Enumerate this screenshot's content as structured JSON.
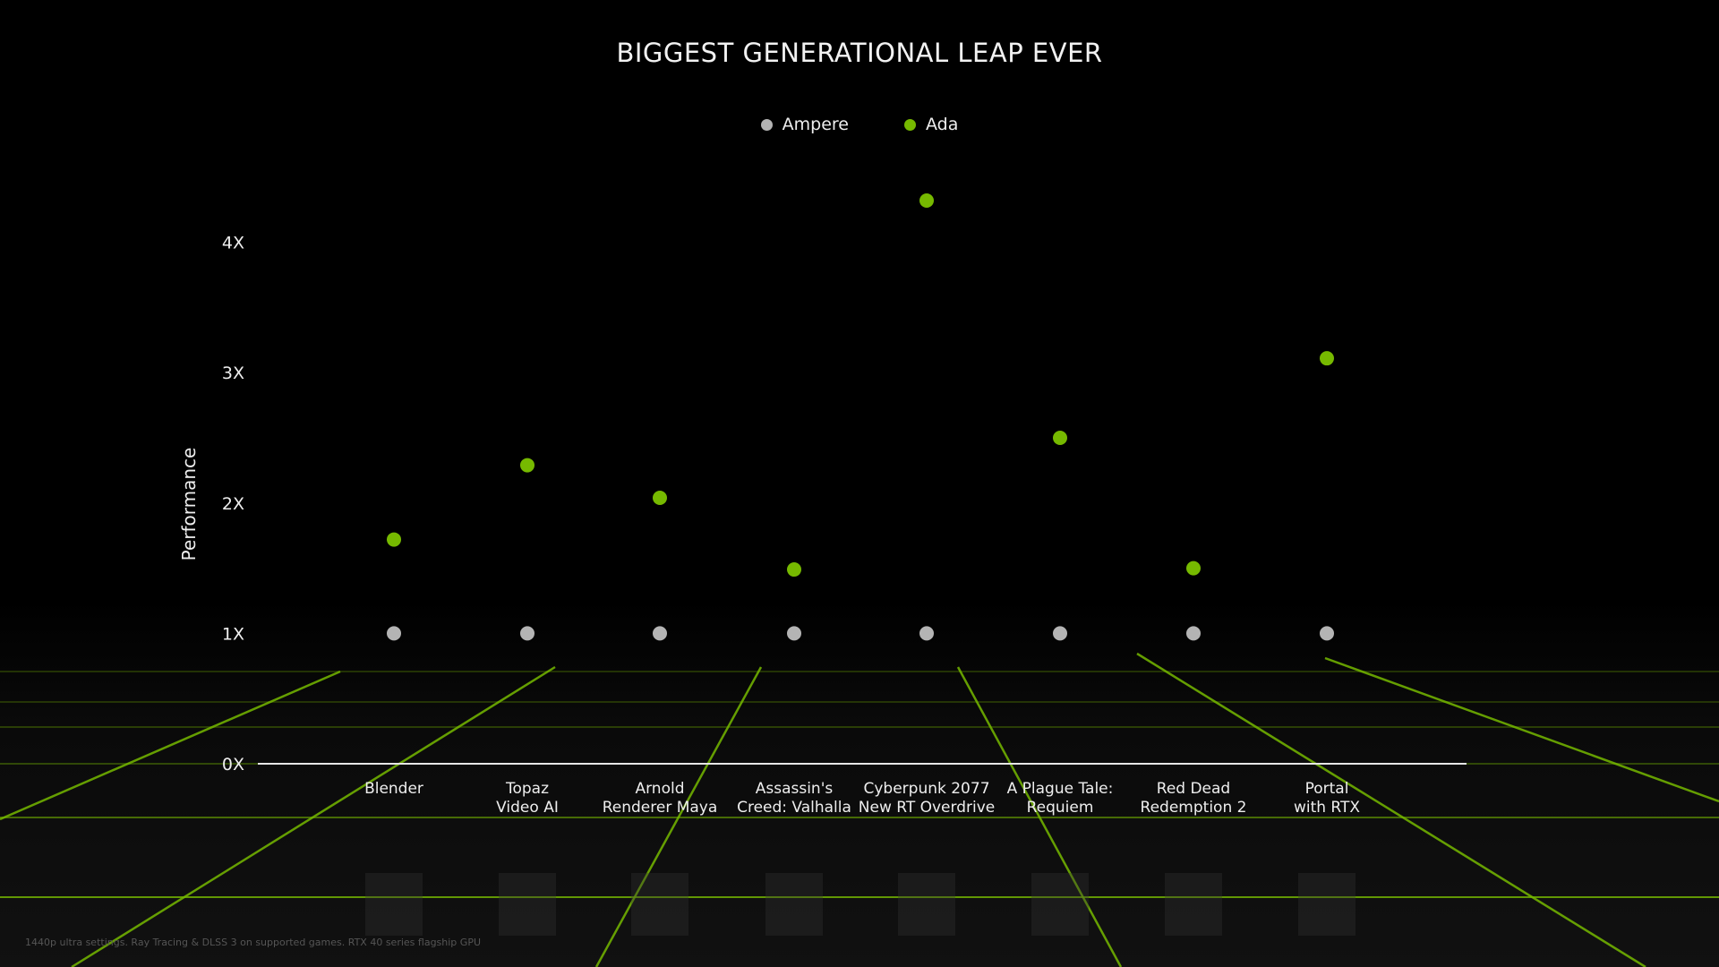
{
  "chart_data": {
    "type": "scatter",
    "title": "BIGGEST GENERATIONAL LEAP EVER",
    "ylabel": "Performance",
    "xlabel": "",
    "ylim": [
      0,
      4.4
    ],
    "yticks": [
      0,
      1,
      2,
      3,
      4
    ],
    "ytick_labels": [
      "0X",
      "1X",
      "2X",
      "3X",
      "4X"
    ],
    "legend_position": "top-center",
    "grid": false,
    "categories": [
      [
        "Blender"
      ],
      [
        "Topaz",
        "Video AI"
      ],
      [
        "Arnold",
        "Renderer Maya"
      ],
      [
        "Assassin's",
        "Creed: Valhalla"
      ],
      [
        "Cyberpunk 2077",
        "New RT Overdrive"
      ],
      [
        "A Plague Tale:",
        "Requiem"
      ],
      [
        "Red Dead",
        "Redemption 2"
      ],
      [
        "Portal",
        "with RTX"
      ]
    ],
    "series": [
      {
        "name": "Ampere",
        "color": "#b4b4b4",
        "values": [
          1,
          1,
          1,
          1,
          1,
          1,
          1,
          1
        ]
      },
      {
        "name": "Ada",
        "color": "#76b900",
        "values": [
          1.72,
          2.29,
          2.04,
          1.49,
          4.32,
          2.5,
          1.5,
          3.11
        ]
      }
    ]
  },
  "footnote": "1440p ultra settings. Ray Tracing & DLSS 3 on supported games.  RTX 40 series flagship GPU"
}
